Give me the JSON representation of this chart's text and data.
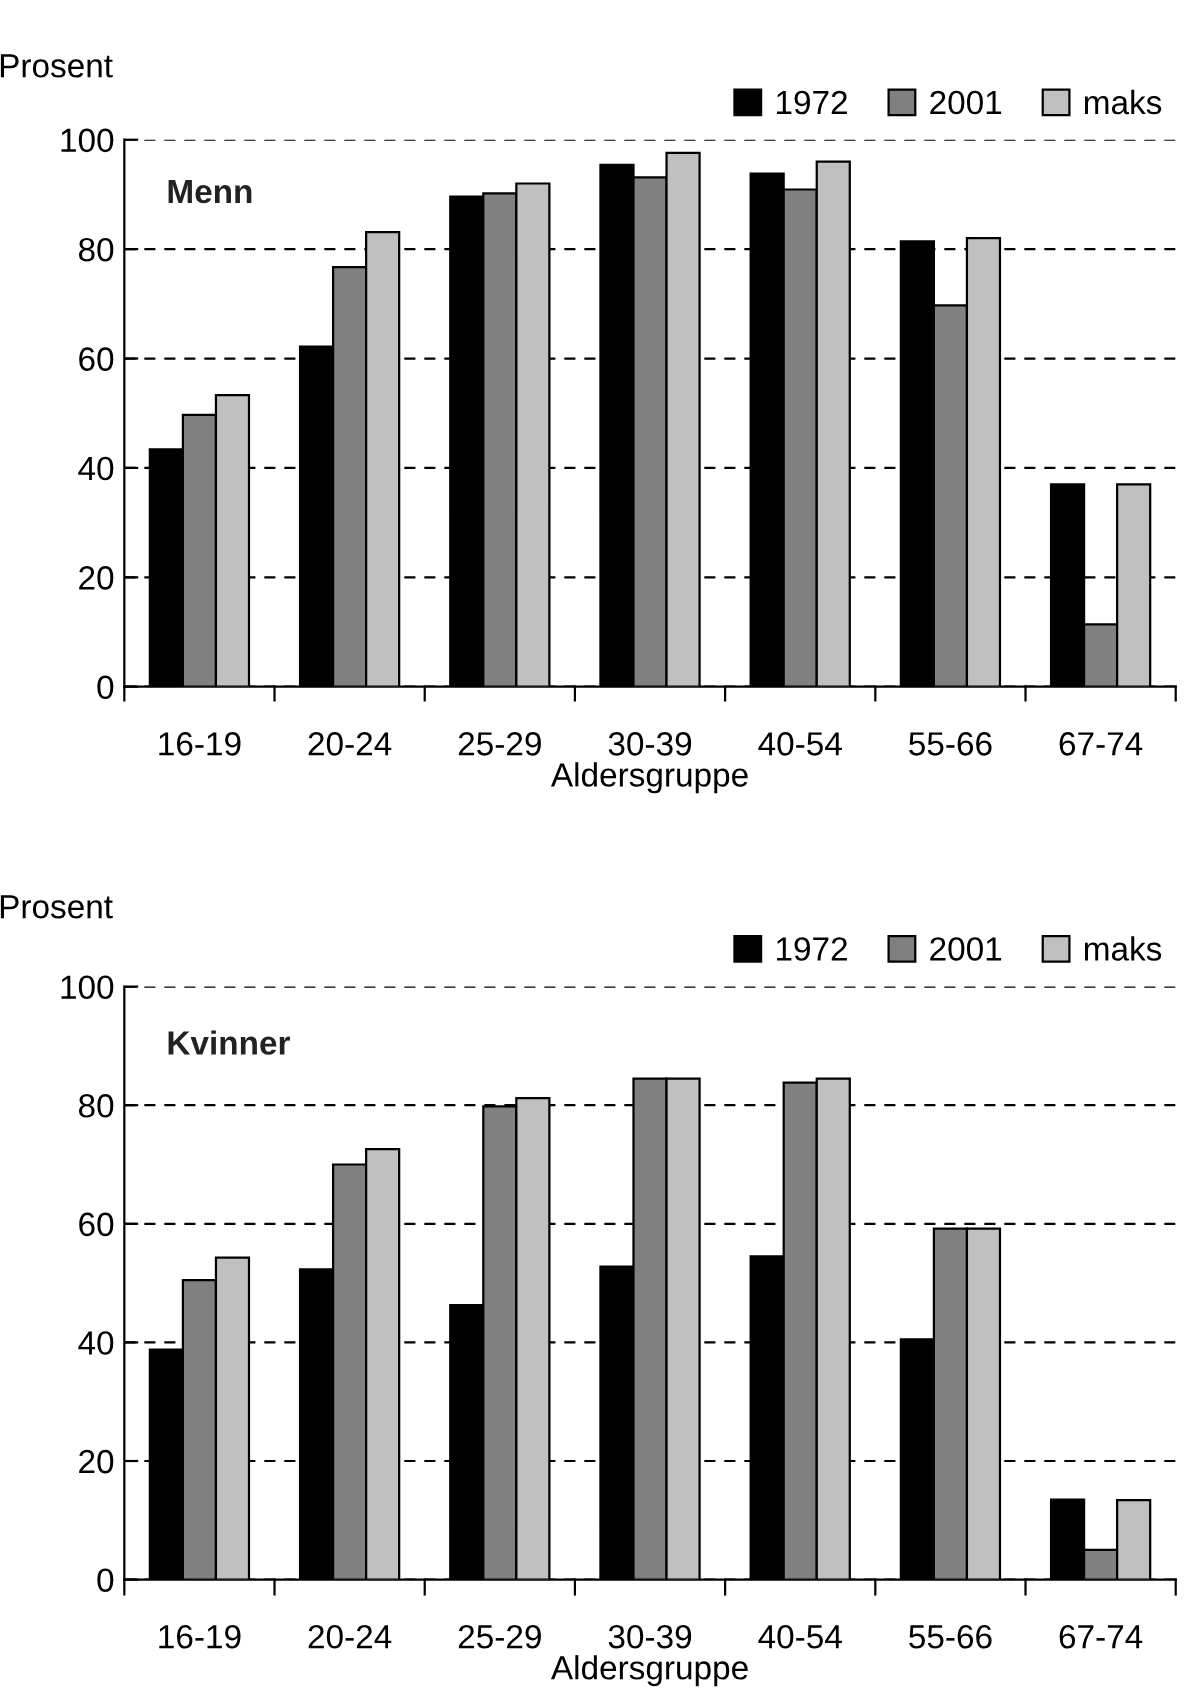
{
  "chart_data": [
    {
      "type": "bar",
      "title": "Menn",
      "ylabel": "Prosent",
      "xlabel": "Aldersgruppe",
      "categories": [
        "16-19",
        "20-24",
        "25-29",
        "30-39",
        "40-54",
        "55-66",
        "67-74"
      ],
      "series": [
        {
          "name": "1972",
          "color": "#000000",
          "values": [
            43.4,
            62.2,
            89.6,
            95.4,
            93.8,
            81.4,
            37.0
          ]
        },
        {
          "name": "2001",
          "color": "#808080",
          "values": [
            49.7,
            76.7,
            90.2,
            93.1,
            90.9,
            69.7,
            11.4
          ]
        },
        {
          "name": "maks",
          "color": "#c0c0c0",
          "values": [
            53.3,
            83.1,
            92.0,
            97.6,
            96.0,
            82.0,
            37.0
          ]
        }
      ],
      "ylim": [
        0,
        100
      ],
      "yticks": [
        0,
        20,
        40,
        60,
        80,
        100
      ],
      "grid": "y",
      "legend": "top right"
    },
    {
      "type": "bar",
      "title": "Kvinner",
      "ylabel": "Prosent",
      "xlabel": "Aldersgruppe",
      "categories": [
        "16-19",
        "20-24",
        "25-29",
        "30-39",
        "40-54",
        "55-66",
        "67-74"
      ],
      "series": [
        {
          "name": "1972",
          "color": "#000000",
          "values": [
            38.8,
            52.3,
            46.3,
            52.8,
            54.5,
            40.5,
            13.5
          ]
        },
        {
          "name": "2001",
          "color": "#808080",
          "values": [
            50.5,
            70.0,
            79.8,
            84.5,
            83.8,
            59.2,
            5.0
          ]
        },
        {
          "name": "maks",
          "color": "#c0c0c0",
          "values": [
            54.3,
            72.6,
            81.2,
            84.5,
            84.5,
            59.2,
            13.4
          ]
        }
      ],
      "ylim": [
        0,
        100
      ],
      "yticks": [
        0,
        20,
        40,
        60,
        80,
        100
      ],
      "grid": "y",
      "legend": "top right"
    }
  ]
}
